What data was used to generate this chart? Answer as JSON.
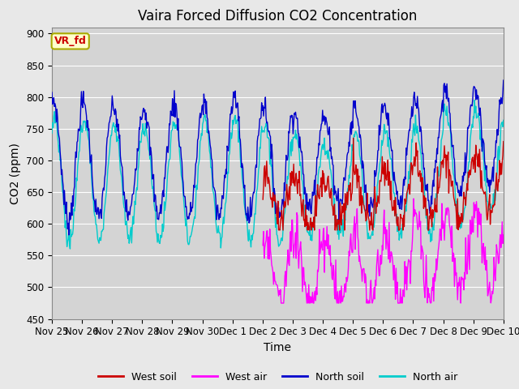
{
  "title": "Vaira Forced Diffusion CO2 Concentration",
  "xlabel": "Time",
  "ylabel": "CO2 (ppm)",
  "ylim": [
    450,
    910
  ],
  "yticks": [
    450,
    500,
    550,
    600,
    650,
    700,
    750,
    800,
    850,
    900
  ],
  "xtick_labels": [
    "Nov 25",
    "Nov 26",
    "Nov 27",
    "Nov 28",
    "Nov 29",
    "Nov 30",
    "Dec 1",
    "Dec 2",
    "Dec 3",
    "Dec 4",
    "Dec 5",
    "Dec 6",
    "Dec 7",
    "Dec 8",
    "Dec 9",
    "Dec 10"
  ],
  "colors": {
    "west_soil": "#cc0000",
    "west_air": "#ff00ff",
    "north_soil": "#0000cc",
    "north_air": "#00cccc"
  },
  "legend_labels": [
    "West soil",
    "West air",
    "North soil",
    "North air"
  ],
  "annotation_text": "VR_fd",
  "annotation_color": "#cc0000",
  "annotation_bg": "#ffffcc",
  "annotation_border": "#aaaa00",
  "background_color": "#e8e8e8",
  "plot_bg_color": "#d4d4d4",
  "grid_color": "#ffffff",
  "title_fontsize": 12,
  "axis_fontsize": 10,
  "tick_fontsize": 8.5
}
